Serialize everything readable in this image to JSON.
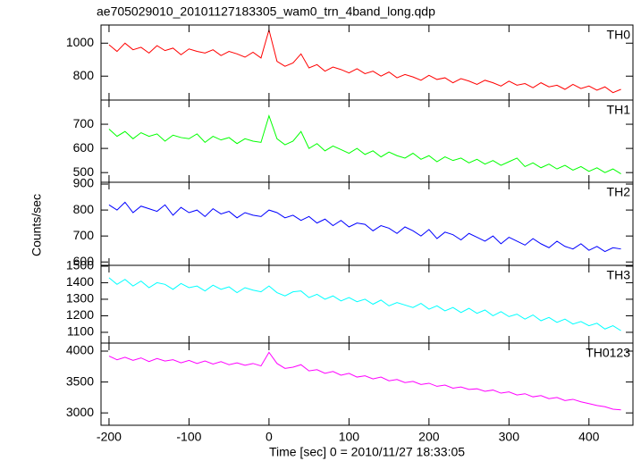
{
  "chart_data": [
    {
      "type": "line",
      "title": "ae705029010_20101127183305_wam0_trn_4band_long.qdp",
      "x": [
        -200,
        -190,
        -180,
        -170,
        -160,
        -150,
        -140,
        -130,
        -120,
        -110,
        -100,
        -90,
        -80,
        -70,
        -60,
        -50,
        -40,
        -30,
        -20,
        -10,
        0,
        10,
        20,
        30,
        40,
        50,
        60,
        70,
        80,
        90,
        100,
        110,
        120,
        130,
        140,
        150,
        160,
        170,
        180,
        190,
        200,
        210,
        220,
        230,
        240,
        250,
        260,
        270,
        280,
        290,
        300,
        310,
        320,
        330,
        340,
        350,
        360,
        370,
        380,
        390,
        400,
        410,
        420,
        430,
        440
      ],
      "series": [
        {
          "name": "TH0",
          "color": "#ff0000",
          "values": [
            990,
            950,
            1000,
            960,
            975,
            940,
            985,
            955,
            970,
            930,
            965,
            950,
            940,
            960,
            925,
            950,
            935,
            915,
            945,
            910,
            1080,
            890,
            860,
            880,
            935,
            850,
            870,
            830,
            855,
            840,
            820,
            845,
            815,
            830,
            800,
            825,
            790,
            810,
            795,
            775,
            805,
            780,
            790,
            760,
            785,
            770,
            750,
            775,
            760,
            740,
            770,
            745,
            755,
            730,
            760,
            735,
            745,
            720,
            750,
            725,
            740,
            715,
            735,
            700,
            720
          ]
        }
      ],
      "xlim": [
        -210,
        455
      ],
      "xticks": [
        -200,
        -100,
        0,
        100,
        200,
        300,
        400
      ],
      "ylim": [
        655,
        1110
      ],
      "yticks": [
        800,
        1000
      ]
    },
    {
      "type": "line",
      "x": [
        -200,
        -190,
        -180,
        -170,
        -160,
        -150,
        -140,
        -130,
        -120,
        -110,
        -100,
        -90,
        -80,
        -70,
        -60,
        -50,
        -40,
        -30,
        -20,
        -10,
        0,
        10,
        20,
        30,
        40,
        50,
        60,
        70,
        80,
        90,
        100,
        110,
        120,
        130,
        140,
        150,
        160,
        170,
        180,
        190,
        200,
        210,
        220,
        230,
        240,
        250,
        260,
        270,
        280,
        290,
        300,
        310,
        320,
        330,
        340,
        350,
        360,
        370,
        380,
        390,
        400,
        410,
        420,
        430,
        440
      ],
      "series": [
        {
          "name": "TH1",
          "color": "#00ff00",
          "values": [
            680,
            650,
            670,
            640,
            665,
            650,
            660,
            630,
            655,
            645,
            640,
            660,
            625,
            650,
            635,
            645,
            620,
            640,
            630,
            625,
            735,
            640,
            615,
            630,
            670,
            600,
            620,
            590,
            610,
            595,
            580,
            600,
            575,
            590,
            565,
            585,
            570,
            560,
            580,
            555,
            570,
            545,
            565,
            550,
            560,
            540,
            555,
            535,
            550,
            530,
            545,
            560,
            525,
            540,
            520,
            535,
            515,
            530,
            510,
            525,
            505,
            520,
            500,
            515,
            495
          ]
        }
      ],
      "xlim": [
        -210,
        455
      ],
      "xticks": [
        -200,
        -100,
        0,
        100,
        200,
        300,
        400
      ],
      "ylim": [
        460,
        800
      ],
      "yticks": [
        500,
        600,
        700
      ]
    },
    {
      "type": "line",
      "ylabel": "Counts/sec",
      "x": [
        -200,
        -190,
        -180,
        -170,
        -160,
        -150,
        -140,
        -130,
        -120,
        -110,
        -100,
        -90,
        -80,
        -70,
        -60,
        -50,
        -40,
        -30,
        -20,
        -10,
        0,
        10,
        20,
        30,
        40,
        50,
        60,
        70,
        80,
        90,
        100,
        110,
        120,
        130,
        140,
        150,
        160,
        170,
        180,
        190,
        200,
        210,
        220,
        230,
        240,
        250,
        260,
        270,
        280,
        290,
        300,
        310,
        320,
        330,
        340,
        350,
        360,
        370,
        380,
        390,
        400,
        410,
        420,
        430,
        440
      ],
      "series": [
        {
          "name": "TH2",
          "color": "#0000ff",
          "values": [
            820,
            800,
            830,
            790,
            815,
            805,
            795,
            820,
            780,
            810,
            790,
            800,
            775,
            805,
            785,
            795,
            770,
            790,
            780,
            775,
            800,
            790,
            770,
            780,
            760,
            775,
            750,
            765,
            740,
            760,
            735,
            750,
            745,
            720,
            740,
            730,
            710,
            735,
            720,
            700,
            725,
            690,
            715,
            705,
            685,
            710,
            695,
            680,
            700,
            670,
            695,
            680,
            665,
            690,
            670,
            655,
            680,
            660,
            650,
            670,
            645,
            660,
            640,
            655,
            650
          ]
        }
      ],
      "xlim": [
        -210,
        455
      ],
      "xticks": [
        -200,
        -100,
        0,
        100,
        200,
        300,
        400
      ],
      "ylim": [
        587,
        907
      ],
      "yticks": [
        600,
        700,
        800,
        900
      ]
    },
    {
      "type": "line",
      "x": [
        -200,
        -190,
        -180,
        -170,
        -160,
        -150,
        -140,
        -130,
        -120,
        -110,
        -100,
        -90,
        -80,
        -70,
        -60,
        -50,
        -40,
        -30,
        -20,
        -10,
        0,
        10,
        20,
        30,
        40,
        50,
        60,
        70,
        80,
        90,
        100,
        110,
        120,
        130,
        140,
        150,
        160,
        170,
        180,
        190,
        200,
        210,
        220,
        230,
        240,
        250,
        260,
        270,
        280,
        290,
        300,
        310,
        320,
        330,
        340,
        350,
        360,
        370,
        380,
        390,
        400,
        410,
        420,
        430,
        440
      ],
      "series": [
        {
          "name": "TH3",
          "color": "#00ffff",
          "values": [
            1430,
            1390,
            1420,
            1380,
            1410,
            1370,
            1400,
            1390,
            1360,
            1395,
            1370,
            1380,
            1350,
            1385,
            1360,
            1375,
            1340,
            1370,
            1355,
            1345,
            1380,
            1340,
            1320,
            1345,
            1350,
            1310,
            1330,
            1300,
            1320,
            1290,
            1310,
            1285,
            1300,
            1270,
            1295,
            1260,
            1280,
            1265,
            1250,
            1275,
            1240,
            1260,
            1230,
            1250,
            1220,
            1245,
            1215,
            1235,
            1200,
            1225,
            1195,
            1210,
            1180,
            1205,
            1170,
            1190,
            1160,
            1180,
            1150,
            1165,
            1140,
            1155,
            1120,
            1140,
            1110
          ]
        }
      ],
      "xlim": [
        -210,
        455
      ],
      "xticks": [
        -200,
        -100,
        0,
        100,
        200,
        300,
        400
      ],
      "ylim": [
        1035,
        1505
      ],
      "yticks": [
        1100,
        1200,
        1300,
        1400,
        1500
      ]
    },
    {
      "type": "line",
      "xlabel": "Time [sec] 0 = 2010/11/27 18:33:05",
      "x": [
        -200,
        -190,
        -180,
        -170,
        -160,
        -150,
        -140,
        -130,
        -120,
        -110,
        -100,
        -90,
        -80,
        -70,
        -60,
        -50,
        -40,
        -30,
        -20,
        -10,
        0,
        10,
        20,
        30,
        40,
        50,
        60,
        70,
        80,
        90,
        100,
        110,
        120,
        130,
        140,
        150,
        160,
        170,
        180,
        190,
        200,
        210,
        220,
        230,
        240,
        250,
        260,
        270,
        280,
        290,
        300,
        310,
        320,
        330,
        340,
        350,
        360,
        370,
        380,
        390,
        400,
        410,
        420,
        430,
        440
      ],
      "series": [
        {
          "name": "TH0123",
          "color": "#ff00ff",
          "values": [
            3920,
            3860,
            3900,
            3850,
            3890,
            3830,
            3880,
            3840,
            3860,
            3810,
            3850,
            3800,
            3840,
            3790,
            3830,
            3780,
            3810,
            3770,
            3800,
            3760,
            3980,
            3800,
            3720,
            3740,
            3780,
            3680,
            3700,
            3640,
            3670,
            3610,
            3640,
            3580,
            3600,
            3550,
            3580,
            3520,
            3540,
            3490,
            3510,
            3460,
            3480,
            3430,
            3450,
            3400,
            3420,
            3380,
            3390,
            3350,
            3370,
            3320,
            3340,
            3290,
            3310,
            3260,
            3280,
            3230,
            3250,
            3200,
            3220,
            3180,
            3150,
            3120,
            3100,
            3060,
            3050
          ]
        }
      ],
      "xlim": [
        -210,
        455
      ],
      "xticks": [
        -200,
        -100,
        0,
        100,
        200,
        300,
        400
      ],
      "ylim": [
        2800,
        4130
      ],
      "yticks": [
        3000,
        3500,
        4000
      ]
    }
  ]
}
